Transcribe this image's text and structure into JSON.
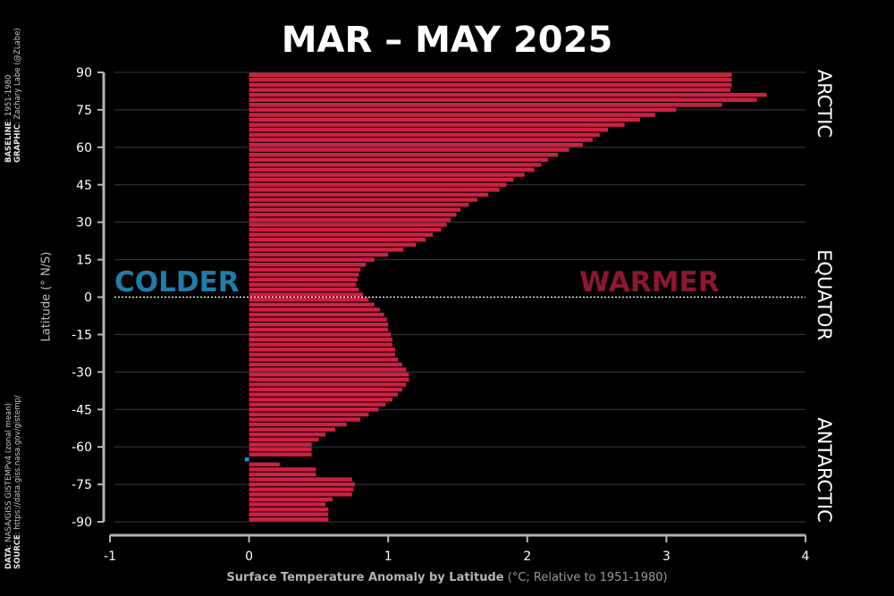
{
  "title": "MAR – MAY 2025",
  "labels": {
    "colder": "COLDER",
    "warmer": "WARMER",
    "regions": [
      "ARCTIC",
      "EQUATOR",
      "ANTARCTIC"
    ]
  },
  "credits": {
    "baseline_label": "BASELINE",
    "baseline_value": ": 1951-1980",
    "graphic_label": "GRAPHIC",
    "graphic_value": ": Zachary Labe (@ZLabe)",
    "data_label": "DATA",
    "data_value": ": NASA/GISS GISTEMPv4 (zonal mean)",
    "source_label": "SOURCE",
    "source_value": ": https://data.giss.nasa.gov/gistemp/"
  },
  "colors": {
    "background": "#000000",
    "warm_bar": "#cf1f43",
    "cold_bar": "#2a8fcf",
    "axis": "#b3b3b3",
    "grid": "#3a3a3a"
  },
  "chart_data": {
    "type": "bar",
    "orientation": "horizontal",
    "title": "MAR – MAY 2025",
    "xlabel_bold": "Surface Temperature Anomaly by Latitude",
    "xlabel_rest": " (°C; Relative to 1951-1980)",
    "ylabel": "Latitude (° N/S)",
    "xlim": [
      -1,
      4
    ],
    "ylim": [
      -90,
      90
    ],
    "xticks": [
      -1,
      0,
      1,
      2,
      3,
      4
    ],
    "yticks": [
      90,
      75,
      60,
      45,
      30,
      15,
      0,
      -15,
      -30,
      -45,
      -60,
      -75,
      -90
    ],
    "grid": true,
    "latitudes": [
      89,
      87,
      85,
      83,
      81,
      79,
      77,
      75,
      73,
      71,
      69,
      67,
      65,
      63,
      61,
      59,
      57,
      55,
      53,
      51,
      49,
      47,
      45,
      43,
      41,
      39,
      37,
      35,
      33,
      31,
      29,
      27,
      25,
      23,
      21,
      19,
      17,
      15,
      13,
      11,
      9,
      7,
      5,
      3,
      1,
      -1,
      -3,
      -5,
      -7,
      -9,
      -11,
      -13,
      -15,
      -17,
      -19,
      -21,
      -23,
      -25,
      -27,
      -29,
      -31,
      -33,
      -35,
      -37,
      -39,
      -41,
      -43,
      -45,
      -47,
      -49,
      -51,
      -53,
      -55,
      -57,
      -59,
      -61,
      -63,
      -65,
      -67,
      -69,
      -71,
      -73,
      -75,
      -77,
      -79,
      -81,
      -83,
      -85,
      -87,
      -89
    ],
    "values": [
      3.47,
      3.47,
      3.47,
      3.46,
      3.72,
      3.65,
      3.4,
      3.07,
      2.92,
      2.81,
      2.7,
      2.58,
      2.52,
      2.47,
      2.4,
      2.3,
      2.22,
      2.15,
      2.1,
      2.05,
      1.98,
      1.9,
      1.85,
      1.8,
      1.72,
      1.64,
      1.58,
      1.52,
      1.49,
      1.45,
      1.42,
      1.38,
      1.32,
      1.27,
      1.2,
      1.11,
      1.0,
      0.9,
      0.84,
      0.8,
      0.79,
      0.78,
      0.77,
      0.79,
      0.82,
      0.86,
      0.9,
      0.94,
      0.97,
      0.99,
      1.0,
      1.0,
      1.02,
      1.03,
      1.03,
      1.05,
      1.05,
      1.07,
      1.1,
      1.13,
      1.15,
      1.15,
      1.13,
      1.1,
      1.07,
      1.03,
      0.98,
      0.93,
      0.86,
      0.8,
      0.7,
      0.62,
      0.55,
      0.5,
      0.45,
      0.45,
      0.45,
      -0.03,
      0.22,
      0.48,
      0.48,
      0.74,
      0.76,
      0.75,
      0.74,
      0.6,
      0.55,
      0.57,
      0.57,
      0.57
    ]
  }
}
